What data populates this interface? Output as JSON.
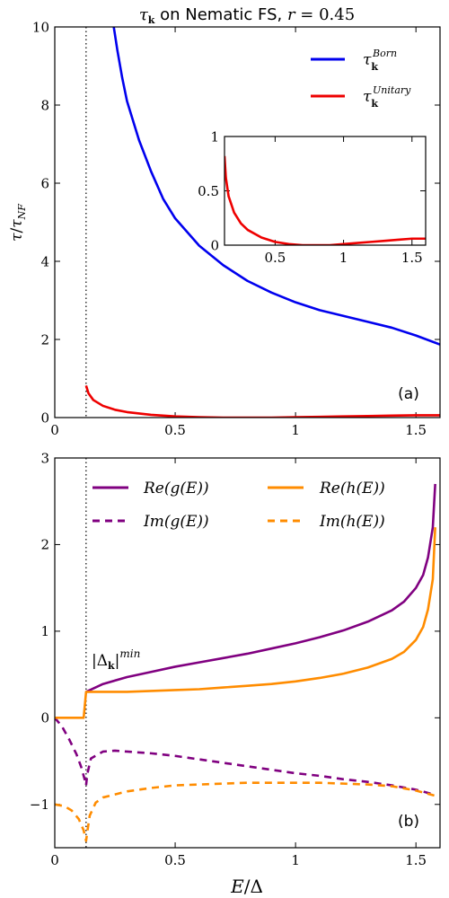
{
  "chart_data": [
    {
      "id": "a",
      "type": "line",
      "title": "τ𝐤 on Nematic FS, r = 0.45",
      "title_parts": {
        "tau": "τ",
        "sub": "k",
        "rest": " on Nematic FS, ",
        "r": "r",
        "eq": " = 0.45"
      },
      "ylabel": "τ/τNF",
      "ylabel_parts": {
        "tau": "τ",
        "slash": "/",
        "tau2": "τ",
        "sub": "NF"
      },
      "xlim": [
        0,
        1.6
      ],
      "ylim": [
        0,
        10
      ],
      "xticks": [
        0,
        0.5,
        1,
        1.5
      ],
      "xtick_labels": [
        "0",
        "0.5",
        "1",
        "1.5"
      ],
      "yticks": [
        0,
        2,
        4,
        6,
        8,
        10
      ],
      "ytick_labels": [
        "0",
        "2",
        "4",
        "6",
        "8",
        "10"
      ],
      "vline_x": 0.13,
      "panel_label": "(a)",
      "legend_position": "top-right",
      "series": [
        {
          "name": "τ𝐤Born",
          "label_parts": {
            "base": "τ",
            "sub": "k",
            "sup": "Born"
          },
          "color": "#0000ee",
          "style": "solid",
          "x": [
            0.245,
            0.26,
            0.28,
            0.3,
            0.35,
            0.4,
            0.45,
            0.5,
            0.6,
            0.7,
            0.8,
            0.9,
            1.0,
            1.1,
            1.2,
            1.3,
            1.4,
            1.5,
            1.6
          ],
          "y": [
            10.0,
            9.4,
            8.7,
            8.1,
            7.1,
            6.3,
            5.6,
            5.1,
            4.4,
            3.9,
            3.5,
            3.2,
            2.95,
            2.75,
            2.6,
            2.45,
            2.3,
            2.1,
            1.87
          ]
        },
        {
          "name": "τ𝐤Unitary",
          "label_parts": {
            "base": "τ",
            "sub": "k",
            "sup": "Unitary"
          },
          "color": "#ee0000",
          "style": "solid",
          "x": [
            0.13,
            0.14,
            0.16,
            0.2,
            0.25,
            0.3,
            0.4,
            0.5,
            0.6,
            0.7,
            0.8,
            0.9,
            1.0,
            1.1,
            1.2,
            1.3,
            1.4,
            1.5,
            1.6
          ],
          "y": [
            0.82,
            0.62,
            0.45,
            0.3,
            0.2,
            0.14,
            0.07,
            0.03,
            0.01,
            0.0,
            0.0,
            0.0,
            0.01,
            0.02,
            0.03,
            0.04,
            0.05,
            0.06,
            0.06
          ]
        }
      ]
    },
    {
      "id": "a-inset",
      "type": "line",
      "xlim": [
        0.13,
        1.6
      ],
      "ylim": [
        0,
        1
      ],
      "xticks": [
        0.5,
        1,
        1.5
      ],
      "xtick_labels": [
        "0.5",
        "1",
        "1.5"
      ],
      "yticks": [
        0,
        0.5,
        1
      ],
      "ytick_labels": [
        "0",
        "0.5",
        "1"
      ],
      "series": [
        {
          "color": "#ee0000",
          "style": "solid",
          "x": [
            0.13,
            0.14,
            0.16,
            0.2,
            0.25,
            0.3,
            0.4,
            0.5,
            0.6,
            0.7,
            0.8,
            0.9,
            1.0,
            1.1,
            1.2,
            1.3,
            1.4,
            1.5,
            1.6
          ],
          "y": [
            0.82,
            0.62,
            0.45,
            0.3,
            0.2,
            0.14,
            0.07,
            0.03,
            0.01,
            0.0,
            0.0,
            0.0,
            0.01,
            0.02,
            0.03,
            0.04,
            0.05,
            0.06,
            0.06
          ]
        }
      ]
    },
    {
      "id": "b",
      "type": "line",
      "xlabel": "E/Δ",
      "xlabel_parts": {
        "e": "E",
        "rest": "/Δ"
      },
      "xlim": [
        0,
        1.6
      ],
      "ylim": [
        -1.5,
        3
      ],
      "xticks": [
        0,
        0.5,
        1,
        1.5
      ],
      "xtick_labels": [
        "0",
        "0.5",
        "1",
        "1.5"
      ],
      "yticks": [
        -1,
        0,
        1,
        2,
        3
      ],
      "ytick_labels": [
        "−1",
        "0",
        "1",
        "2",
        "3"
      ],
      "vline_x": 0.13,
      "panel_label": "(b)",
      "annotation": {
        "text": "|Δ𝐤|min",
        "parts": {
          "open": "|Δ",
          "sub": "k",
          "close": "|",
          "sup": "min"
        },
        "x": 0.15,
        "y": 0.55
      },
      "legend_position": "top, two columns",
      "series": [
        {
          "name": "Re(g(E))",
          "color": "#800080",
          "style": "solid",
          "x": [
            0.13,
            0.2,
            0.3,
            0.4,
            0.5,
            0.6,
            0.7,
            0.8,
            0.9,
            1.0,
            1.1,
            1.2,
            1.3,
            1.4,
            1.45,
            1.5,
            1.53,
            1.55,
            1.57,
            1.58
          ],
          "y": [
            0.3,
            0.39,
            0.47,
            0.53,
            0.59,
            0.64,
            0.69,
            0.74,
            0.8,
            0.86,
            0.93,
            1.01,
            1.11,
            1.24,
            1.34,
            1.5,
            1.65,
            1.85,
            2.2,
            2.7
          ]
        },
        {
          "name": "Im(g(E))",
          "color": "#800080",
          "style": "dashed",
          "x": [
            0.0,
            0.03,
            0.06,
            0.09,
            0.11,
            0.125,
            0.13,
            0.135,
            0.15,
            0.2,
            0.25,
            0.3,
            0.4,
            0.5,
            0.6,
            0.7,
            0.8,
            0.9,
            1.0,
            1.1,
            1.2,
            1.3,
            1.4,
            1.5,
            1.58
          ],
          "y": [
            0.0,
            -0.1,
            -0.25,
            -0.42,
            -0.57,
            -0.72,
            -0.78,
            -0.65,
            -0.47,
            -0.39,
            -0.38,
            -0.39,
            -0.41,
            -0.44,
            -0.48,
            -0.52,
            -0.56,
            -0.6,
            -0.64,
            -0.67,
            -0.71,
            -0.74,
            -0.78,
            -0.83,
            -0.89
          ]
        },
        {
          "name": "Re(h(E))",
          "color": "#ff8c00",
          "style": "solid",
          "x": [
            0.0,
            0.12,
            0.13,
            0.2,
            0.3,
            0.4,
            0.5,
            0.6,
            0.7,
            0.8,
            0.9,
            1.0,
            1.1,
            1.2,
            1.3,
            1.4,
            1.45,
            1.5,
            1.53,
            1.55,
            1.57,
            1.58
          ],
          "y": [
            0.0,
            0.0,
            0.3,
            0.3,
            0.3,
            0.31,
            0.32,
            0.33,
            0.35,
            0.37,
            0.39,
            0.42,
            0.46,
            0.51,
            0.58,
            0.68,
            0.76,
            0.9,
            1.05,
            1.25,
            1.6,
            2.2
          ]
        },
        {
          "name": "Im(h(E))",
          "color": "#ff8c00",
          "style": "dashed",
          "x": [
            0.0,
            0.04,
            0.07,
            0.1,
            0.12,
            0.13,
            0.135,
            0.145,
            0.17,
            0.2,
            0.3,
            0.4,
            0.5,
            0.6,
            0.7,
            0.8,
            0.9,
            1.0,
            1.1,
            1.2,
            1.3,
            1.4,
            1.5,
            1.58
          ],
          "y": [
            -1.0,
            -1.02,
            -1.07,
            -1.17,
            -1.3,
            -1.42,
            -1.32,
            -1.13,
            -0.98,
            -0.92,
            -0.85,
            -0.81,
            -0.78,
            -0.77,
            -0.76,
            -0.75,
            -0.75,
            -0.75,
            -0.75,
            -0.76,
            -0.77,
            -0.79,
            -0.84,
            -0.9
          ]
        }
      ]
    }
  ]
}
